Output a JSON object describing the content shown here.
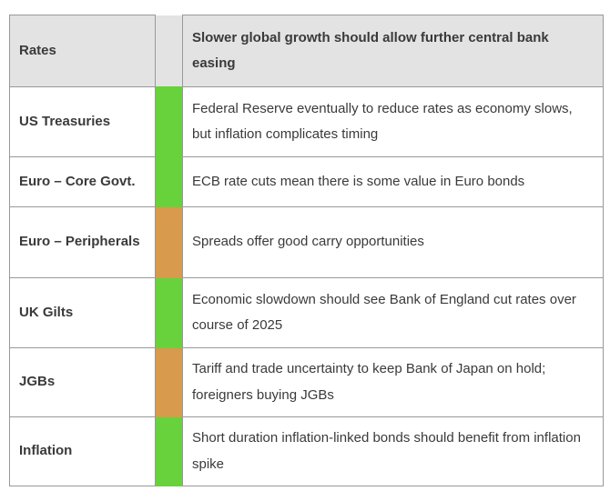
{
  "page": {
    "background": "#ffffff"
  },
  "status_colors": {
    "green": "#68d23c",
    "orange": "#d89a4c"
  },
  "table": {
    "border_color": "#999999",
    "header_background": "#e3e3e3",
    "header": {
      "label": "Rates",
      "status": "green",
      "commentary": "Slower global growth should allow further central bank easing"
    },
    "rows": [
      {
        "label": "US Treasuries",
        "status": "green",
        "commentary": "Federal Reserve eventually to reduce rates as economy slows, but inflation complicates timing"
      },
      {
        "label": "Euro – Core Govt.",
        "status": "green",
        "commentary": "ECB rate cuts mean there is some value in Euro bonds"
      },
      {
        "label": "Euro – Peripherals",
        "status": "orange",
        "commentary": "Spreads offer good carry opportunities"
      },
      {
        "label": "UK Gilts",
        "status": "green",
        "commentary": "Economic slowdown should see Bank of England cut rates over course of 2025"
      },
      {
        "label": "JGBs",
        "status": "orange",
        "commentary": "Tariff and trade uncertainty to keep Bank of Japan on hold; foreigners buying JGBs"
      },
      {
        "label": "Inflation",
        "status": "green",
        "commentary": "Short duration inflation-linked bonds should benefit from inflation spike"
      }
    ]
  }
}
